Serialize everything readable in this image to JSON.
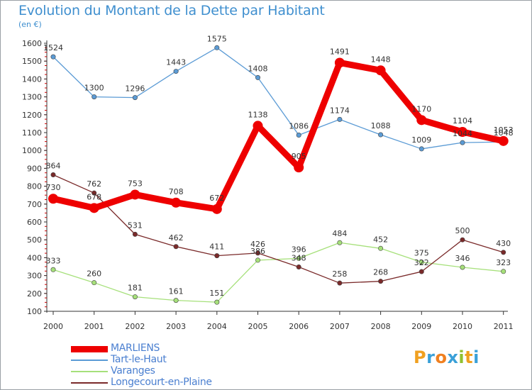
{
  "title": "Evolution du Montant de la Dette par Habitant",
  "subtitle": "(en €)",
  "logo": {
    "text": "Proxiti",
    "letters": [
      {
        "char": "P",
        "color": "#f0a020"
      },
      {
        "char": "r",
        "color": "#3aa0d8"
      },
      {
        "char": "o",
        "color": "#f08020"
      },
      {
        "char": "x",
        "color": "#3aa0d8"
      },
      {
        "char": "i",
        "color": "#90c030"
      },
      {
        "char": "t",
        "color": "#f0a020"
      },
      {
        "char": "i",
        "color": "#3aa0d8"
      }
    ]
  },
  "chart_data": {
    "type": "line",
    "title": "Evolution du Montant de la Dette par Habitant",
    "subtitle": "(en €)",
    "x": [
      "2000",
      "2001",
      "2002",
      "2003",
      "2004",
      "2005",
      "2006",
      "2007",
      "2008",
      "2009",
      "2010",
      "2011"
    ],
    "ylim": [
      100,
      1600
    ],
    "yticks": [
      100,
      200,
      300,
      400,
      500,
      600,
      700,
      800,
      900,
      1000,
      1100,
      1200,
      1300,
      1400,
      1500,
      1600
    ],
    "grid": false,
    "legend": "bottom-left",
    "series": [
      {
        "name": "MARLIENS",
        "color": "#ee0000",
        "emphasis": true,
        "values": [
          730,
          678,
          753,
          708,
          672,
          1138,
          905,
          1491,
          1448,
          1170,
          1104,
          1053
        ]
      },
      {
        "name": "Tart-le-Haut",
        "color": "#5b9bd5",
        "emphasis": false,
        "values": [
          1524,
          1300,
          1296,
          1443,
          1575,
          1408,
          1086,
          1174,
          1088,
          1009,
          1044,
          1048
        ]
      },
      {
        "name": "Varanges",
        "color": "#a6e07a",
        "emphasis": false,
        "values": [
          333,
          260,
          181,
          161,
          151,
          386,
          396,
          484,
          452,
          375,
          346,
          323
        ]
      },
      {
        "name": "Longecourt-en-Plaine",
        "color": "#7a2a2a",
        "emphasis": false,
        "values": [
          864,
          762,
          531,
          462,
          411,
          426,
          348,
          258,
          268,
          322,
          500,
          430
        ]
      }
    ]
  }
}
